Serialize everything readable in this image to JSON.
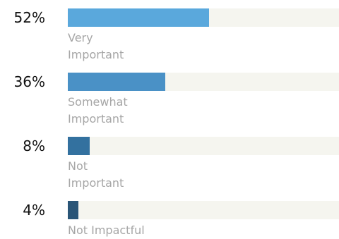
{
  "chart_data": {
    "type": "bar",
    "orientation": "horizontal",
    "categories": [
      "Very\nImportant",
      "Somewhat\nImportant",
      "Not\nImportant",
      "Not Impactful"
    ],
    "values": [
      52,
      36,
      8,
      4
    ],
    "value_labels": [
      "52%",
      "36%",
      "8%",
      "4%"
    ],
    "xlim": [
      0,
      100
    ],
    "colors": [
      "#5aa8dc",
      "#4a91c6",
      "#33719f",
      "#2a5577"
    ],
    "track_color": "#f5f5ef",
    "grid": false,
    "legend": "none"
  }
}
